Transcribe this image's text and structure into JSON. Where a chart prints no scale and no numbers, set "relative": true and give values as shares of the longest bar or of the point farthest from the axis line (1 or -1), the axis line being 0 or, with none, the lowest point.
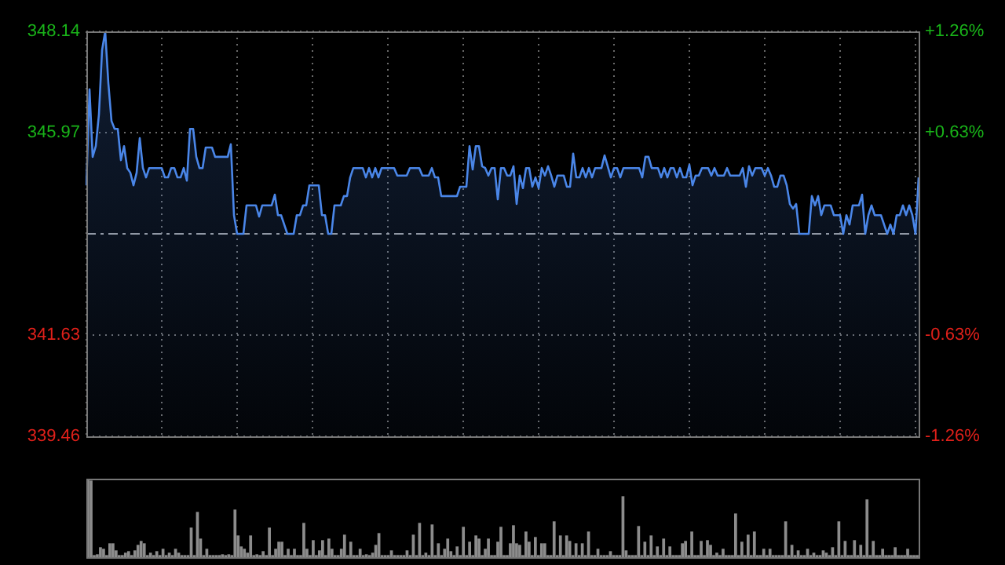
{
  "chart_data": [
    {
      "type": "area",
      "marker": "none",
      "grid": true,
      "tick_labels": "y",
      "categories": [
        null,
        null,
        null,
        null,
        null,
        null,
        null,
        null,
        null,
        null,
        null,
        null,
        null,
        null,
        null,
        null,
        null,
        null,
        null,
        null,
        null,
        null,
        null,
        null,
        null,
        null,
        null,
        null,
        null,
        null,
        null,
        null,
        null,
        null,
        null,
        null,
        null,
        null,
        null,
        null,
        null,
        null,
        null,
        null,
        null,
        null,
        null,
        null,
        null,
        null,
        null,
        null,
        null,
        null,
        null,
        null,
        null,
        null,
        null,
        null,
        null,
        null,
        null,
        null,
        null,
        null,
        null,
        null,
        null,
        null,
        null,
        null,
        null,
        null,
        null,
        null,
        null,
        null,
        null,
        null,
        null,
        null,
        null,
        null,
        null,
        null,
        null,
        null,
        null,
        null,
        null,
        null,
        null,
        null,
        null,
        null,
        null,
        null,
        null,
        null,
        null,
        null,
        null,
        null,
        null,
        null,
        null,
        null,
        null,
        null,
        null,
        null,
        null,
        null,
        null,
        null,
        null,
        null,
        null,
        null,
        null,
        null,
        null,
        null,
        null,
        null,
        null,
        null,
        null,
        null,
        null,
        null,
        null,
        null,
        null,
        null,
        null,
        null,
        null,
        null,
        null,
        null,
        null,
        null,
        null,
        null,
        null,
        null,
        null,
        null,
        null,
        null,
        null,
        null,
        null,
        null,
        null,
        null,
        null,
        null,
        null,
        null,
        null,
        null,
        null,
        null,
        null,
        null,
        null,
        null,
        null,
        null,
        null,
        null,
        null,
        null,
        null,
        null,
        null,
        null,
        null,
        null,
        null,
        null,
        null,
        null,
        null,
        null,
        null,
        null,
        null,
        null,
        null,
        null,
        null,
        null,
        null,
        null,
        null,
        null,
        null,
        null,
        null,
        null,
        null,
        null,
        null,
        null,
        null,
        null,
        null,
        null,
        null,
        null,
        null,
        null,
        null,
        null,
        null,
        null,
        null,
        null,
        null,
        null,
        null,
        null,
        null,
        null,
        null,
        null,
        null,
        null,
        null,
        null,
        null,
        null,
        null,
        null,
        null,
        null,
        null,
        null,
        null,
        null,
        null,
        null,
        null,
        null,
        null,
        null,
        null,
        null,
        null,
        null,
        null,
        null,
        null,
        null,
        null,
        null,
        null,
        null,
        null,
        null,
        null,
        null
      ],
      "ylim": [
        339.46,
        348.14
      ],
      "yticks": [
        339.46,
        341.63,
        345.97,
        348.14
      ],
      "y2lim": [
        -1.26,
        1.26
      ],
      "y2ticks": [
        {
          "value": -1.26,
          "label": "-1.26%"
        },
        {
          "value": -0.63,
          "label": "-0.63%"
        },
        {
          "value": 0.63,
          "label": "+0.63%"
        },
        {
          "value": 1.26,
          "label": "+1.26%"
        }
      ],
      "ref_lines": [
        {
          "axis": "y",
          "value": 343.8,
          "color": "#9a9a9a",
          "line_style": "dashed"
        }
      ],
      "series": [
        {
          "color": "#4a86e8",
          "values": [
            344.84,
            346.9,
            345.45,
            345.68,
            346.36,
            347.74,
            348.14,
            347.03,
            346.22,
            346.05,
            346.05,
            345.38,
            345.68,
            345.21,
            345.11,
            344.84,
            345.11,
            345.85,
            345.21,
            345.01,
            345.21,
            345.21,
            345.21,
            345.21,
            345.21,
            345.01,
            345.01,
            345.21,
            345.21,
            345.01,
            345.01,
            345.21,
            344.94,
            346.05,
            346.05,
            345.45,
            345.21,
            345.21,
            345.65,
            345.65,
            345.65,
            345.45,
            345.45,
            345.45,
            345.45,
            345.45,
            345.72,
            344.2,
            343.8,
            343.8,
            343.8,
            344.41,
            344.41,
            344.41,
            344.41,
            344.17,
            344.41,
            344.41,
            344.41,
            344.41,
            344.64,
            344.2,
            344.2,
            344.0,
            343.8,
            343.8,
            343.8,
            344.2,
            344.2,
            344.41,
            344.41,
            344.84,
            344.84,
            344.84,
            344.84,
            344.2,
            344.2,
            343.8,
            343.8,
            344.41,
            344.41,
            344.41,
            344.61,
            344.61,
            345.01,
            345.21,
            345.21,
            345.21,
            345.21,
            345.01,
            345.21,
            345.01,
            345.21,
            345.01,
            345.21,
            345.21,
            345.21,
            345.21,
            345.21,
            345.05,
            345.05,
            345.05,
            345.05,
            345.21,
            345.21,
            345.21,
            345.21,
            345.05,
            345.05,
            345.05,
            345.21,
            345.01,
            345.01,
            344.61,
            344.61,
            344.61,
            344.61,
            344.61,
            344.61,
            344.81,
            344.81,
            344.81,
            345.68,
            345.18,
            345.68,
            345.68,
            345.25,
            345.21,
            345.05,
            345.21,
            345.21,
            344.54,
            345.21,
            345.21,
            345.05,
            345.05,
            345.25,
            344.44,
            345.05,
            344.78,
            345.21,
            345.21,
            344.81,
            345.01,
            344.78,
            345.21,
            345.05,
            345.25,
            345.05,
            344.81,
            345.05,
            345.05,
            345.05,
            344.81,
            344.81,
            345.52,
            345.01,
            345.01,
            345.21,
            345.01,
            345.21,
            345.01,
            345.21,
            345.21,
            345.21,
            345.48,
            345.25,
            345.01,
            345.21,
            345.21,
            345.01,
            345.21,
            345.21,
            345.21,
            345.21,
            345.21,
            345.21,
            345.01,
            345.45,
            345.45,
            345.21,
            345.21,
            345.21,
            345.01,
            345.21,
            345.01,
            345.21,
            345.21,
            345.01,
            345.21,
            345.01,
            345.01,
            345.28,
            344.84,
            345.05,
            345.05,
            345.21,
            345.21,
            345.21,
            345.05,
            345.21,
            345.05,
            345.05,
            345.05,
            345.21,
            345.05,
            345.05,
            345.05,
            345.05,
            345.21,
            344.81,
            345.25,
            345.05,
            345.21,
            345.21,
            345.21,
            345.05,
            345.21,
            345.05,
            344.81,
            344.81,
            345.05,
            345.05,
            344.84,
            344.44,
            344.34,
            344.44,
            343.8,
            343.8,
            343.8,
            343.8,
            344.61,
            344.41,
            344.61,
            344.2,
            344.41,
            344.41,
            344.41,
            344.2,
            344.2,
            344.2,
            343.8,
            344.2,
            344.0,
            344.41,
            344.41,
            344.41,
            344.64,
            343.8,
            344.2,
            344.41,
            344.2,
            344.2,
            344.2,
            344.0,
            343.8,
            344.0,
            343.8,
            344.2,
            344.2,
            344.41,
            344.2,
            344.41,
            344.2,
            343.8,
            345.01
          ]
        }
      ]
    },
    {
      "type": "bar",
      "relative": true,
      "tick_labels": false,
      "color": "#8c8c8c",
      "categories": [
        null,
        null,
        null,
        null,
        null,
        null,
        null,
        null,
        null,
        null,
        null,
        null,
        null,
        null,
        null,
        null,
        null,
        null,
        null,
        null,
        null,
        null,
        null,
        null,
        null,
        null,
        null,
        null,
        null,
        null,
        null,
        null,
        null,
        null,
        null,
        null,
        null,
        null,
        null,
        null,
        null,
        null,
        null,
        null,
        null,
        null,
        null,
        null,
        null,
        null,
        null,
        null,
        null,
        null,
        null,
        null,
        null,
        null,
        null,
        null,
        null,
        null,
        null,
        null,
        null,
        null,
        null,
        null,
        null,
        null,
        null,
        null,
        null,
        null,
        null,
        null,
        null,
        null,
        null,
        null,
        null,
        null,
        null,
        null,
        null,
        null,
        null,
        null,
        null,
        null,
        null,
        null,
        null,
        null,
        null,
        null,
        null,
        null,
        null,
        null,
        null,
        null,
        null,
        null,
        null,
        null,
        null,
        null,
        null,
        null,
        null,
        null,
        null,
        null,
        null,
        null,
        null,
        null,
        null,
        null,
        null,
        null,
        null,
        null,
        null,
        null,
        null,
        null,
        null,
        null,
        null,
        null,
        null,
        null,
        null,
        null,
        null,
        null,
        null,
        null,
        null,
        null,
        null,
        null,
        null,
        null,
        null,
        null,
        null,
        null,
        null,
        null,
        null,
        null,
        null,
        null,
        null,
        null,
        null,
        null,
        null,
        null,
        null,
        null,
        null,
        null,
        null,
        null,
        null,
        null,
        null,
        null,
        null,
        null,
        null,
        null,
        null,
        null,
        null,
        null,
        null,
        null,
        null,
        null,
        null,
        null,
        null,
        null,
        null,
        null,
        null,
        null,
        null,
        null,
        null,
        null,
        null,
        null,
        null,
        null,
        null,
        null,
        null,
        null,
        null,
        null,
        null,
        null,
        null,
        null,
        null,
        null,
        null,
        null,
        null,
        null,
        null,
        null,
        null,
        null,
        null,
        null,
        null,
        null,
        null,
        null,
        null,
        null,
        null,
        null,
        null,
        null,
        null,
        null,
        null,
        null,
        null,
        null,
        null,
        null,
        null,
        null,
        null,
        null,
        null,
        null,
        null,
        null,
        null,
        null,
        null,
        null,
        null,
        null,
        null,
        null,
        null,
        null,
        null,
        null,
        null,
        null,
        null,
        null,
        null,
        null
      ],
      "values": [
        1.0,
        0.97,
        0.02,
        0.03,
        0.12,
        0.1,
        0.02,
        0.17,
        0.17,
        0.08,
        0.02,
        0.02,
        0.05,
        0.07,
        0.02,
        0.08,
        0.15,
        0.2,
        0.17,
        0.02,
        0.05,
        0.02,
        0.07,
        0.02,
        0.1,
        0.02,
        0.05,
        0.02,
        0.1,
        0.05,
        0.02,
        0.02,
        0.02,
        0.37,
        0.02,
        0.57,
        0.23,
        0.02,
        0.1,
        0.02,
        0.02,
        0.02,
        0.02,
        0.03,
        0.02,
        0.03,
        0.02,
        0.6,
        0.27,
        0.13,
        0.1,
        0.05,
        0.27,
        0.02,
        0.03,
        0.02,
        0.07,
        0.02,
        0.37,
        0.02,
        0.1,
        0.19,
        0.19,
        0.02,
        0.1,
        0.02,
        0.1,
        0.02,
        0.02,
        0.43,
        0.1,
        0.02,
        0.21,
        0.02,
        0.08,
        0.21,
        0.02,
        0.23,
        0.1,
        0.02,
        0.02,
        0.1,
        0.28,
        0.02,
        0.19,
        0.02,
        0.02,
        0.1,
        0.02,
        0.03,
        0.02,
        0.05,
        0.15,
        0.3,
        0.02,
        0.02,
        0.02,
        0.08,
        0.02,
        0.02,
        0.02,
        0.02,
        0.08,
        0.02,
        0.28,
        0.02,
        0.43,
        0.02,
        0.05,
        0.02,
        0.41,
        0.02,
        0.17,
        0.02,
        0.1,
        0.23,
        0.07,
        0.02,
        0.13,
        0.02,
        0.38,
        0.02,
        0.19,
        0.02,
        0.27,
        0.23,
        0.02,
        0.1,
        0.23,
        0.02,
        0.02,
        0.19,
        0.38,
        0.02,
        0.02,
        0.17,
        0.4,
        0.17,
        0.15,
        0.02,
        0.32,
        0.19,
        0.02,
        0.25,
        0.02,
        0.17,
        0.17,
        0.02,
        0.02,
        0.45,
        0.02,
        0.27,
        0.02,
        0.27,
        0.2,
        0.02,
        0.17,
        0.02,
        0.17,
        0.02,
        0.32,
        0.02,
        0.02,
        0.1,
        0.02,
        0.02,
        0.02,
        0.07,
        0.02,
        0.02,
        0.02,
        0.77,
        0.08,
        0.02,
        0.02,
        0.02,
        0.39,
        0.02,
        0.19,
        0.02,
        0.27,
        0.02,
        0.13,
        0.02,
        0.23,
        0.02,
        0.13,
        0.02,
        0.02,
        0.02,
        0.17,
        0.2,
        0.02,
        0.32,
        0.02,
        0.02,
        0.2,
        0.02,
        0.21,
        0.15,
        0.02,
        0.05,
        0.02,
        0.1,
        0.02,
        0.02,
        0.02,
        0.55,
        0.02,
        0.19,
        0.02,
        0.28,
        0.02,
        0.32,
        0.02,
        0.02,
        0.1,
        0.02,
        0.1,
        0.02,
        0.02,
        0.02,
        0.02,
        0.45,
        0.02,
        0.15,
        0.02,
        0.08,
        0.02,
        0.02,
        0.1,
        0.02,
        0.05,
        0.02,
        0.02,
        0.08,
        0.05,
        0.02,
        0.12,
        0.02,
        0.45,
        0.02,
        0.2,
        0.02,
        0.02,
        0.21,
        0.02,
        0.15,
        0.02,
        0.73,
        0.02,
        0.2,
        0.02,
        0.02,
        0.1,
        0.02,
        0.02,
        0.02,
        0.12,
        0.02,
        0.02,
        0.02,
        0.1,
        0.02,
        0.02,
        0.02
      ]
    }
  ]
}
